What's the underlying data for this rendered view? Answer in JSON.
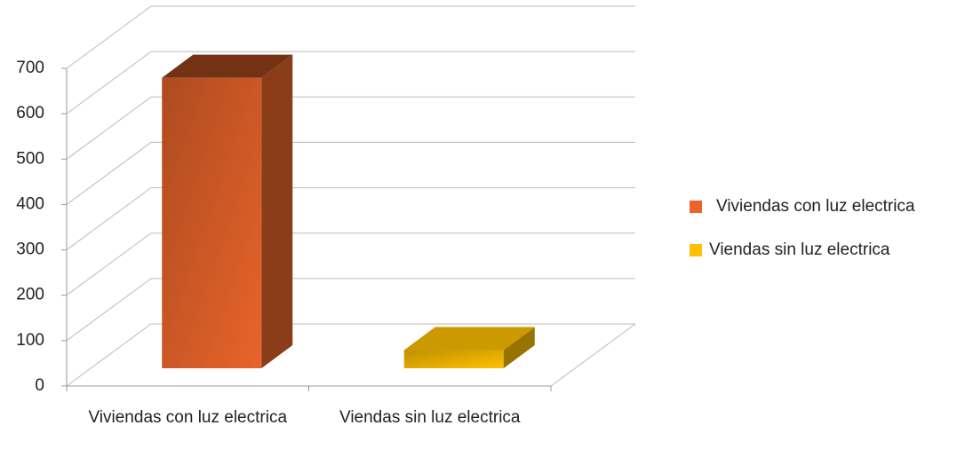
{
  "chart_data": {
    "type": "bar3d",
    "categories": [
      "Viviendas con luz electrica",
      "Viendas sin luz electrica"
    ],
    "values": [
      640,
      40
    ],
    "colors": [
      "#e8642a",
      "#ffc000"
    ],
    "ylim": [
      0,
      700
    ],
    "yticks": [
      0,
      100,
      200,
      300,
      400,
      500,
      600,
      700
    ],
    "grid": true,
    "legend": "right"
  }
}
